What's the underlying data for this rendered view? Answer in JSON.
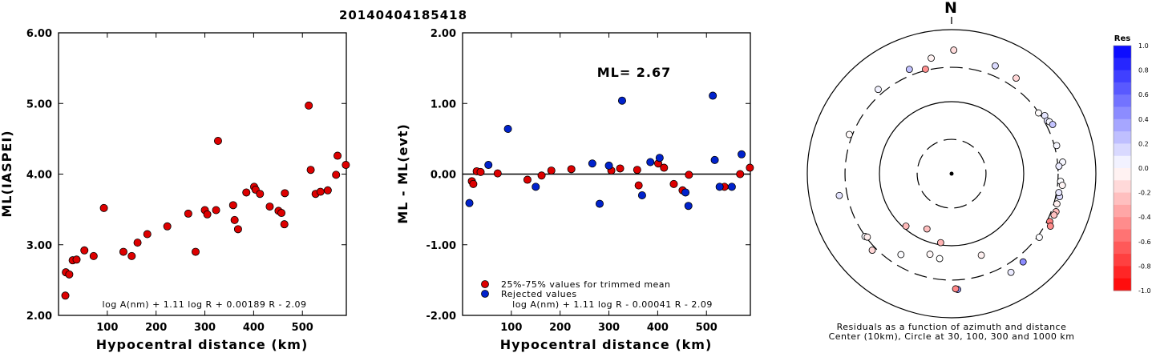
{
  "title": "20140404185418",
  "chart_data": [
    {
      "type": "scatter",
      "id": "magnitude-vs-distance",
      "xlabel": "Hypocentral distance (km)",
      "ylabel": "ML(IASPEI)",
      "xlim": [
        0,
        590
      ],
      "ylim": [
        2.0,
        6.0
      ],
      "xticks": [
        "100",
        "200",
        "300",
        "400",
        "500"
      ],
      "xtick_values": [
        100,
        200,
        300,
        400,
        500
      ],
      "yticks": [
        "2.00",
        "3.00",
        "4.00",
        "5.00",
        "6.00"
      ],
      "ytick_values": [
        2.0,
        3.0,
        4.0,
        5.0,
        6.0
      ],
      "formula": "log A(nm) + 1.11 log R + 0.00189 R - 2.09",
      "marker_color": "#dd0000",
      "points": [
        [
          14,
          2.28
        ],
        [
          15,
          2.61
        ],
        [
          22,
          2.58
        ],
        [
          29,
          2.78
        ],
        [
          37,
          2.79
        ],
        [
          53,
          2.92
        ],
        [
          72,
          2.84
        ],
        [
          93,
          3.52
        ],
        [
          133,
          2.9
        ],
        [
          150,
          2.84
        ],
        [
          162,
          3.03
        ],
        [
          182,
          3.15
        ],
        [
          223,
          3.26
        ],
        [
          266,
          3.44
        ],
        [
          281,
          2.9
        ],
        [
          300,
          3.49
        ],
        [
          305,
          3.43
        ],
        [
          323,
          3.49
        ],
        [
          327,
          4.47
        ],
        [
          385,
          3.74
        ],
        [
          358,
          3.56
        ],
        [
          361,
          3.35
        ],
        [
          368,
          3.22
        ],
        [
          401,
          3.82
        ],
        [
          404,
          3.78
        ],
        [
          413,
          3.72
        ],
        [
          433,
          3.54
        ],
        [
          451,
          3.48
        ],
        [
          457,
          3.45
        ],
        [
          464,
          3.73
        ],
        [
          463,
          3.29
        ],
        [
          513,
          4.97
        ],
        [
          517,
          4.06
        ],
        [
          527,
          3.72
        ],
        [
          537,
          3.75
        ],
        [
          552,
          3.77
        ],
        [
          569,
          3.99
        ],
        [
          572,
          4.26
        ],
        [
          589,
          4.13
        ]
      ]
    },
    {
      "type": "scatter",
      "id": "residuals-vs-distance",
      "xlabel": "Hypocentral distance (km)",
      "ylabel": "ML - ML(evt)",
      "xlim": [
        0,
        590
      ],
      "ylim": [
        -2.0,
        2.0
      ],
      "xticks": [
        "100",
        "200",
        "300",
        "400",
        "500"
      ],
      "xtick_values": [
        100,
        200,
        300,
        400,
        500
      ],
      "yticks": [
        "-2.00",
        "-1.00",
        "0.00",
        "1.00",
        "2.00"
      ],
      "ytick_values": [
        -2.0,
        -1.0,
        0.0,
        1.0,
        2.0
      ],
      "annotation": "ML= 2.67",
      "formula": "log A(nm) + 1.11 log R - 0.00041 R - 2.09",
      "legend": [
        {
          "label": "25%-75% values for trimmed mean",
          "color": "#dd0000"
        },
        {
          "label": "Rejected values",
          "color": "#0022cc"
        }
      ],
      "series": [
        {
          "name": "25%-75% values for trimmed mean",
          "color": "#dd0000",
          "points": [
            [
              19,
              -0.1
            ],
            [
              22,
              -0.14
            ],
            [
              29,
              0.04
            ],
            [
              37,
              0.03
            ],
            [
              72,
              0.01
            ],
            [
              133,
              -0.08
            ],
            [
              162,
              -0.02
            ],
            [
              182,
              0.05
            ],
            [
              223,
              0.07
            ],
            [
              305,
              0.05
            ],
            [
              323,
              0.08
            ],
            [
              358,
              0.06
            ],
            [
              361,
              -0.16
            ],
            [
              401,
              0.15
            ],
            [
              413,
              0.09
            ],
            [
              433,
              -0.14
            ],
            [
              451,
              -0.23
            ],
            [
              464,
              -0.01
            ],
            [
              537,
              -0.18
            ],
            [
              569,
              0.0
            ],
            [
              589,
              0.09
            ]
          ]
        },
        {
          "name": "Rejected values",
          "color": "#0022cc",
          "points": [
            [
              14,
              -0.41
            ],
            [
              53,
              0.13
            ],
            [
              93,
              0.64
            ],
            [
              150,
              -0.18
            ],
            [
              266,
              0.15
            ],
            [
              281,
              -0.42
            ],
            [
              300,
              0.12
            ],
            [
              327,
              1.04
            ],
            [
              368,
              -0.3
            ],
            [
              385,
              0.17
            ],
            [
              404,
              0.23
            ],
            [
              457,
              -0.26
            ],
            [
              463,
              -0.45
            ],
            [
              513,
              1.11
            ],
            [
              517,
              0.2
            ],
            [
              527,
              -0.18
            ],
            [
              552,
              -0.18
            ],
            [
              572,
              0.28
            ]
          ]
        }
      ]
    },
    {
      "type": "scatter",
      "id": "azimuth-distance-map",
      "north_label": "N",
      "caption_line1": "Residuals as a function of azimuth and distance",
      "caption_line2": "Center (10km), Circle at 30, 100, 300 and 1000 km",
      "colorbar_title": "Res",
      "colorbar_ticks": [
        "1.0",
        "0.8",
        "0.6",
        "0.4",
        "0.2",
        "0.0",
        "-0.2",
        "-0.4",
        "-0.6",
        "-0.8",
        "-1.0"
      ],
      "colorbar_tick_values": [
        1.0,
        0.8,
        0.6,
        0.4,
        0.2,
        0.0,
        -0.2,
        -0.4,
        -0.6,
        -0.8,
        -1.0
      ],
      "rings_km": [
        30,
        100,
        300,
        1000
      ],
      "ring_styles": [
        "dashed",
        "solid",
        "dashed",
        "solid"
      ],
      "points": [
        [
          1,
          520,
          -0.14
        ],
        [
          350,
          425,
          -0.05
        ],
        [
          22,
          412,
          0.14
        ],
        [
          319,
          355,
          0.05
        ],
        [
          338,
          365,
          0.24
        ],
        [
          34,
          398,
          -0.16
        ],
        [
          346,
          313,
          -0.43
        ],
        [
          55,
          296,
          -0.01
        ],
        [
          58,
          333,
          0.1
        ],
        [
          61,
          328,
          0.12
        ],
        [
          62,
          343,
          0.04
        ],
        [
          64,
          362,
          0.23
        ],
        [
          291,
          330,
          -0.02
        ],
        [
          102,
          339,
          0.13
        ],
        [
          75,
          322,
          0.03
        ],
        [
          84,
          353,
          0.03
        ],
        [
          86,
          310,
          0.08
        ],
        [
          94,
          327,
          0.01
        ],
        [
          96,
          350,
          -0.04
        ],
        [
          100,
          323,
          0.09
        ],
        [
          106,
          330,
          -0.06
        ],
        [
          110,
          347,
          -0.27
        ],
        [
          112,
          340,
          -0.24
        ],
        [
          116,
          327,
          -0.5
        ],
        [
          118,
          356,
          -0.45
        ],
        [
          126,
          318,
          0.01
        ],
        [
          141,
          376,
          0.45
        ],
        [
          149,
          396,
          0.08
        ],
        [
          177,
          406,
          0.41
        ],
        [
          178,
          397,
          -0.47
        ],
        [
          226,
          338,
          -0.16
        ],
        [
          234,
          304,
          0.02
        ],
        [
          233,
          290,
          -0.07
        ],
        [
          259,
          385,
          0.11
        ],
        [
          212,
          211,
          0.01
        ],
        [
          160,
          160,
          -0.06
        ],
        [
          189,
          93,
          -0.3
        ],
        [
          195,
          144,
          -0.03
        ],
        [
          204,
          69,
          -0.25
        ],
        [
          221,
          92,
          -0.27
        ],
        [
          188,
          155,
          0.0
        ]
      ]
    }
  ]
}
